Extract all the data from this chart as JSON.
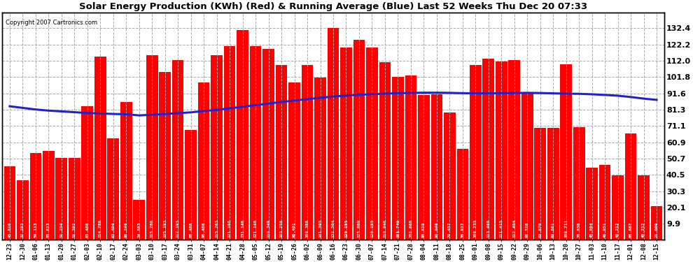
{
  "title": "Solar Energy Production (KWh) (Red) & Running Average (Blue) Last 52 Weeks Thu Dec 20 07:33",
  "copyright": "Copyright 2007 Cartronics.com",
  "bar_color": "#ff0000",
  "line_color": "#2222cc",
  "background_color": "#ffffff",
  "plot_bg_color": "#ffffff",
  "grid_color": "#aaaaaa",
  "ylim": [
    0,
    142
  ],
  "yticks_right": [
    9.9,
    20.1,
    30.3,
    40.5,
    50.7,
    60.9,
    71.1,
    81.3,
    91.6,
    101.8,
    112.0,
    122.2,
    132.4
  ],
  "categories": [
    "12-23",
    "12-30",
    "01-06",
    "01-13",
    "01-20",
    "01-27",
    "02-03",
    "02-10",
    "02-17",
    "02-24",
    "03-03",
    "03-10",
    "03-17",
    "03-24",
    "03-31",
    "04-07",
    "04-14",
    "04-21",
    "04-28",
    "05-05",
    "05-12",
    "05-19",
    "05-26",
    "06-02",
    "06-09",
    "06-16",
    "06-23",
    "06-30",
    "07-07",
    "07-14",
    "07-21",
    "07-28",
    "08-04",
    "08-11",
    "08-18",
    "08-25",
    "09-01",
    "09-08",
    "09-15",
    "09-22",
    "09-29",
    "10-06",
    "10-13",
    "10-20",
    "10-27",
    "11-03",
    "11-10",
    "11-17",
    "12-01",
    "12-08",
    "12-15"
  ],
  "values": [
    45.816,
    37.293,
    54.113,
    55.613,
    51.254,
    51.392,
    83.486,
    114.786,
    63.404,
    86.249,
    24.863,
    115.286,
    105.193,
    112.193,
    68.486,
    98.486,
    115.263,
    121.168,
    131.146,
    121.148,
    119.349,
    109.258,
    98.401,
    109.388,
    101.395,
    132.504,
    120.155,
    125.009,
    120.155,
    110.946,
    101.746,
    102.66,
    90.619,
    90.949,
    79.457,
    56.917,
    109.233,
    113.46,
    111.415,
    112.404,
    91.51,
    69.87,
    69.881,
    109.711,
    70.636,
    45.084,
    46.951,
    40.212,
    66.667,
    40.212,
    21.009
  ],
  "running_avg": [
    83.5,
    82.5,
    81.5,
    80.8,
    80.3,
    79.8,
    79.3,
    79.0,
    78.7,
    78.5,
    77.8,
    78.2,
    78.6,
    79.2,
    79.7,
    80.5,
    81.3,
    82.2,
    83.2,
    84.2,
    85.2,
    86.2,
    87.1,
    88.0,
    88.8,
    89.6,
    90.2,
    90.7,
    91.1,
    91.4,
    91.7,
    91.9,
    92.0,
    92.0,
    91.9,
    91.7,
    91.6,
    91.6,
    91.7,
    91.8,
    91.9,
    91.8,
    91.6,
    91.4,
    91.3,
    91.0,
    90.6,
    90.1,
    89.3,
    88.3,
    87.5
  ]
}
